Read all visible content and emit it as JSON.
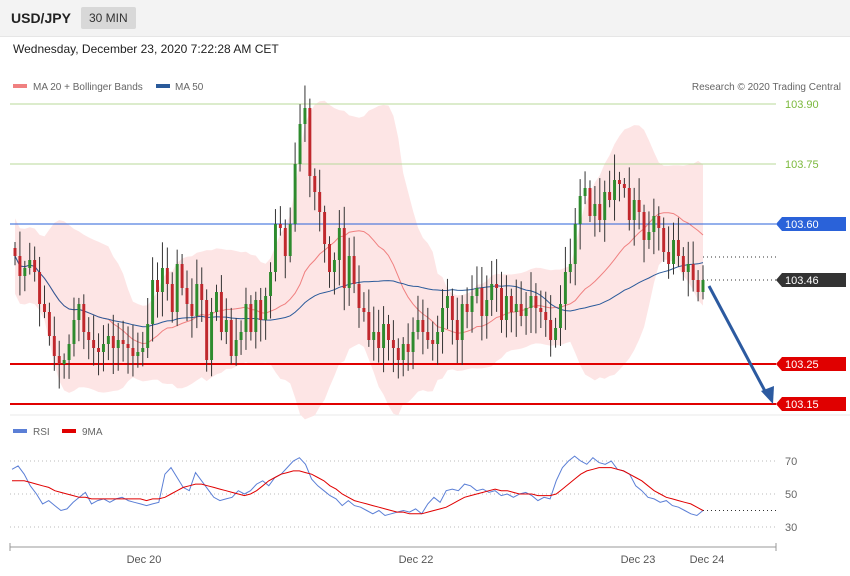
{
  "header": {
    "symbol": "USD/JPY",
    "interval": "30 MIN"
  },
  "datetime": "Wednesday, December 23, 2020 7:22:28 AM CET",
  "legend": {
    "items": [
      {
        "label": "MA 20 + Bollinger Bands",
        "color": "#f08080"
      },
      {
        "label": "MA 50",
        "color": "#2a5a9a"
      }
    ],
    "credit": "Research © 2020 Trading Central"
  },
  "rsi_legend": {
    "items": [
      {
        "label": "RSI",
        "color": "#5b7fd6"
      },
      {
        "label": "9MA",
        "color": "#e00000"
      }
    ]
  },
  "chart_data": [
    {
      "type": "candlestick",
      "title": "",
      "ylim": [
        103.02,
        104.04
      ],
      "x_labels": [
        "Dec 20",
        "Dec 22",
        "Dec 23",
        "Dec 24"
      ],
      "levels": [
        {
          "value": 103.9,
          "label": "103.90",
          "color": "#7bb83c",
          "style": "resistance"
        },
        {
          "value": 103.75,
          "label": "103.75",
          "color": "#7bb83c",
          "style": "resistance"
        },
        {
          "value": 103.6,
          "label": "103.60",
          "color": "#2a62d9",
          "style": "pivot"
        },
        {
          "value": 103.46,
          "label": "103.46",
          "color": "#333333",
          "style": "last"
        },
        {
          "value": 103.25,
          "label": "103.25",
          "color": "#e00000",
          "style": "support"
        },
        {
          "value": 103.15,
          "label": "103.15",
          "color": "#e00000",
          "style": "support"
        }
      ],
      "close": [
        103.52,
        103.47,
        103.49,
        103.51,
        103.48,
        103.4,
        103.38,
        103.32,
        103.27,
        103.25,
        103.26,
        103.3,
        103.36,
        103.4,
        103.33,
        103.31,
        103.29,
        103.28,
        103.3,
        103.32,
        103.29,
        103.31,
        103.3,
        103.29,
        103.27,
        103.28,
        103.29,
        103.35,
        103.46,
        103.43,
        103.49,
        103.45,
        103.38,
        103.5,
        103.44,
        103.4,
        103.37,
        103.45,
        103.41,
        103.26,
        103.38,
        103.43,
        103.33,
        103.36,
        103.27,
        103.31,
        103.33,
        103.4,
        103.33,
        103.41,
        103.36,
        103.42,
        103.48,
        103.6,
        103.59,
        103.52,
        103.6,
        103.75,
        103.85,
        103.89,
        103.72,
        103.68,
        103.63,
        103.55,
        103.48,
        103.51,
        103.59,
        103.44,
        103.52,
        103.45,
        103.39,
        103.38,
        103.31,
        103.33,
        103.29,
        103.35,
        103.31,
        103.29,
        103.26,
        103.3,
        103.28,
        103.33,
        103.36,
        103.33,
        103.31,
        103.3,
        103.33,
        103.39,
        103.42,
        103.36,
        103.31,
        103.4,
        103.38,
        103.42,
        103.44,
        103.37,
        103.41,
        103.45,
        103.44,
        103.36,
        103.42,
        103.38,
        103.4,
        103.37,
        103.39,
        103.42,
        103.39,
        103.38,
        103.36,
        103.31,
        103.34,
        103.4,
        103.48,
        103.5,
        103.6,
        103.67,
        103.69,
        103.62,
        103.65,
        103.61,
        103.68,
        103.66,
        103.71,
        103.7,
        103.69,
        103.61,
        103.66,
        103.63,
        103.56,
        103.58,
        103.62,
        103.59,
        103.53,
        103.5,
        103.56,
        103.52,
        103.48,
        103.5,
        103.46,
        103.43,
        103.46
      ],
      "rsi": {
        "ylim": [
          20,
          90
        ],
        "ticks": [
          70,
          50,
          30
        ],
        "rsi": [
          65,
          67,
          62,
          55,
          50,
          44,
          46,
          43,
          40,
          41,
          45,
          48,
          51,
          44,
          46,
          47,
          45,
          47,
          48,
          46,
          45,
          44,
          43,
          44,
          45,
          62,
          66,
          60,
          54,
          52,
          63,
          58,
          53,
          48,
          46,
          47,
          48,
          52,
          50,
          52,
          56,
          58,
          55,
          60,
          62,
          66,
          70,
          72,
          68,
          59,
          55,
          52,
          49,
          47,
          43,
          46,
          43,
          42,
          40,
          38,
          40,
          37,
          38,
          39,
          40,
          39,
          41,
          38,
          44,
          48,
          45,
          52,
          53,
          52,
          56,
          55,
          52,
          53,
          51,
          52,
          49,
          50,
          48,
          50,
          51,
          49,
          46,
          48,
          47,
          58,
          66,
          70,
          73,
          70,
          68,
          72,
          69,
          68,
          70,
          65,
          64,
          62,
          55,
          52,
          48,
          47,
          45,
          46,
          43,
          42,
          40,
          38,
          37,
          40
        ],
        "ma": [
          58,
          58,
          58,
          57,
          56,
          55,
          54,
          52,
          51,
          50,
          49,
          48,
          48,
          47,
          47,
          47,
          47,
          47,
          47,
          47,
          47,
          47,
          46,
          47,
          47,
          48,
          50,
          52,
          54,
          55,
          56,
          56,
          55,
          54,
          53,
          52,
          51,
          50,
          49,
          50,
          52,
          55,
          58,
          60,
          62,
          63,
          64,
          64,
          63,
          62,
          60,
          58,
          55,
          53,
          50,
          48,
          46,
          45,
          44,
          43,
          42,
          41,
          40,
          39,
          39,
          38,
          38,
          38,
          39,
          40,
          41,
          42,
          44,
          46,
          48,
          49,
          50,
          51,
          52,
          53,
          52,
          52,
          51,
          50,
          50,
          50,
          49,
          49,
          49,
          50,
          53,
          56,
          59,
          62,
          64,
          65,
          66,
          66,
          66,
          65,
          64,
          62,
          60,
          58,
          55,
          52,
          50,
          48,
          47,
          46,
          45,
          44,
          42,
          40
        ]
      }
    }
  ]
}
